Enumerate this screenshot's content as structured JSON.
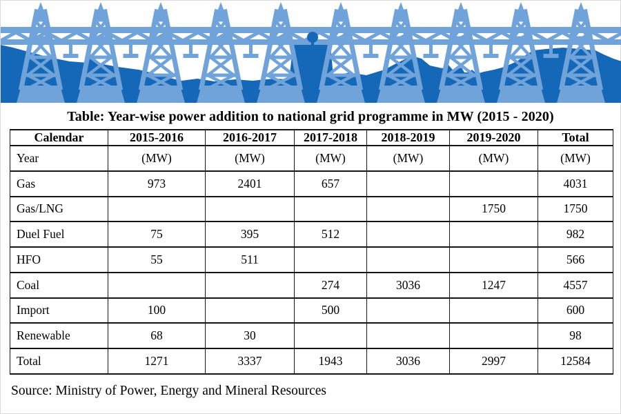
{
  "banner": {
    "name": "power-transmission-grid-banner",
    "tower_color": "#6FA3D9",
    "hill_color": "#1568B8",
    "tower_count": 10
  },
  "title": "Table: Year-wise power addition to national grid programme in MW (2015 - 2020)",
  "chart_data": {
    "type": "table",
    "title": "Table: Year-wise power addition to national grid programme in MW (2015 - 2020)",
    "columns": [
      "Calendar",
      "2015-2016",
      "2016-2017",
      "2017-2018",
      "2018-2019",
      "2019-2020",
      "Total"
    ],
    "unit_row": [
      "Year",
      "(MW)",
      "(MW)",
      "(MW)",
      "(MW)",
      "(MW)",
      "(MW)"
    ],
    "rows": [
      {
        "label": "Gas",
        "values": [
          "973",
          "2401",
          "657",
          "",
          "",
          "4031"
        ]
      },
      {
        "label": "Gas/LNG",
        "values": [
          "",
          "",
          "",
          "",
          "1750",
          "1750"
        ]
      },
      {
        "label": "Duel Fuel",
        "values": [
          "75",
          "395",
          "512",
          "",
          "",
          "982"
        ]
      },
      {
        "label": "HFO",
        "values": [
          "55",
          "511",
          "",
          "",
          "",
          "566"
        ]
      },
      {
        "label": "Coal",
        "values": [
          "",
          "",
          "274",
          "3036",
          "1247",
          "4557"
        ]
      },
      {
        "label": "Import",
        "values": [
          "100",
          "",
          "500",
          "",
          "",
          "600"
        ]
      },
      {
        "label": "Renewable",
        "values": [
          "68",
          "30",
          "",
          "",
          "",
          "98"
        ]
      },
      {
        "label": "Total",
        "values": [
          "1271",
          "3337",
          "1943",
          "3036",
          "2997",
          "12584"
        ]
      }
    ]
  },
  "source": "Source: Ministry of Power, Energy and Mineral Resources"
}
